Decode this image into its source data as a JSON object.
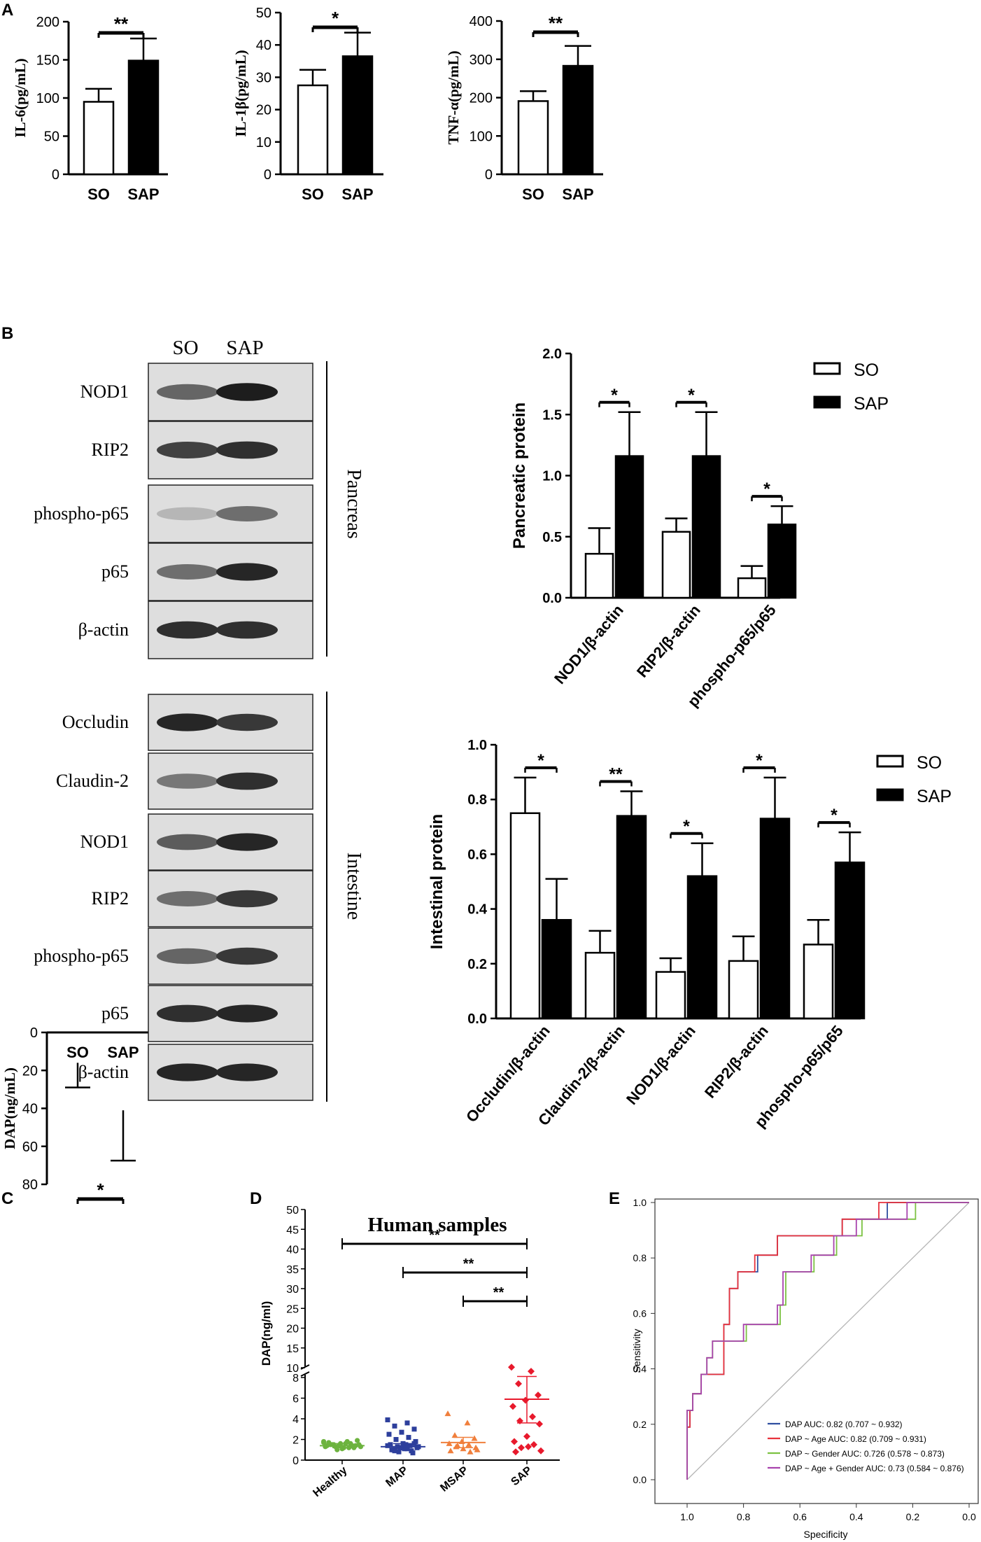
{
  "panels": [
    "A",
    "B",
    "C",
    "D",
    "E"
  ],
  "chart_data": [
    {
      "id": "A1",
      "type": "bar",
      "categories": [
        "SO",
        "SAP"
      ],
      "values": [
        95,
        149
      ],
      "errors": [
        17,
        29
      ],
      "ylabel": "IL-6(pg/mL)",
      "ylim": [
        0,
        200
      ],
      "yticks": [
        0,
        50,
        100,
        150,
        200
      ],
      "significance": [
        {
          "from": 0,
          "to": 1,
          "label": "**"
        }
      ]
    },
    {
      "id": "A2",
      "type": "bar",
      "categories": [
        "SO",
        "SAP"
      ],
      "values": [
        27.5,
        36.5
      ],
      "errors": [
        4.8,
        7.3
      ],
      "ylabel": "IL-1β(pg/mL)",
      "ylim": [
        0,
        50
      ],
      "yticks": [
        0,
        10,
        20,
        30,
        40,
        50
      ],
      "significance": [
        {
          "from": 0,
          "to": 1,
          "label": "*"
        }
      ]
    },
    {
      "id": "A3",
      "type": "bar",
      "categories": [
        "SO",
        "SAP"
      ],
      "values": [
        191,
        283
      ],
      "errors": [
        26,
        52
      ],
      "ylabel": "TNF-α(pg/mL)",
      "ylim": [
        0,
        400
      ],
      "yticks": [
        0,
        100,
        200,
        300,
        400
      ],
      "significance": [
        {
          "from": 0,
          "to": 1,
          "label": "**"
        }
      ]
    },
    {
      "id": "B_pancreas",
      "type": "bar",
      "categories": [
        "NOD1/β-actin",
        "RIP2/β-actin",
        "phospho-p65/p65"
      ],
      "series": [
        {
          "name": "SO",
          "values": [
            0.36,
            0.54,
            0.16
          ],
          "errors": [
            0.21,
            0.11,
            0.1
          ]
        },
        {
          "name": "SAP",
          "values": [
            1.16,
            1.16,
            0.6
          ],
          "errors": [
            0.36,
            0.36,
            0.15
          ]
        }
      ],
      "ylabel": "Pancreatic protein",
      "ylim": [
        0,
        2.0
      ],
      "yticks": [
        "0.0",
        "0.5",
        "1.0",
        "1.5",
        "2.0"
      ],
      "significance_labels": [
        "*",
        "*",
        "*"
      ],
      "legend": "top-right"
    },
    {
      "id": "B_intestine",
      "type": "bar",
      "categories": [
        "Occludin/β-actin",
        "Claudin-2/β-actin",
        "NOD1/β-actin",
        "RIP2/β-actin",
        "phospho-p65/p65"
      ],
      "series": [
        {
          "name": "SO",
          "values": [
            0.75,
            0.24,
            0.17,
            0.21,
            0.27
          ],
          "errors": [
            0.13,
            0.08,
            0.05,
            0.09,
            0.09
          ]
        },
        {
          "name": "SAP",
          "values": [
            0.36,
            0.74,
            0.52,
            0.73,
            0.57
          ],
          "errors": [
            0.15,
            0.09,
            0.12,
            0.15,
            0.11
          ]
        }
      ],
      "ylabel": "Intestinal protein",
      "ylim": [
        0,
        1.0
      ],
      "yticks": [
        "0.0",
        "0.2",
        "0.4",
        "0.6",
        "0.8",
        "1.0"
      ],
      "significance_labels": [
        "*",
        "**",
        "*",
        "*",
        "*"
      ],
      "legend": "top-right"
    },
    {
      "id": "C",
      "type": "bar",
      "categories": [
        "SO",
        "SAP"
      ],
      "values": [
        16,
        41
      ],
      "errors": [
        13,
        26.5
      ],
      "ylabel": "DAP(ng/mL)",
      "ylim": [
        0,
        80
      ],
      "yticks": [
        0,
        20,
        40,
        60,
        80
      ],
      "significance": [
        {
          "from": 0,
          "to": 1,
          "label": "*"
        }
      ]
    },
    {
      "id": "D",
      "type": "scatter",
      "title": "Human samples",
      "categories": [
        "Healthy",
        "MAP",
        "MSAP",
        "SAP"
      ],
      "colors": [
        "#6db33f",
        "#2d3f9c",
        "#f07f3c",
        "#e8192c"
      ],
      "ylabel": "DAP(ng/ml)",
      "yticks_lower": [
        "0",
        "2",
        "4",
        "6",
        "8"
      ],
      "yticks_upper": [
        "10",
        "15",
        "20",
        "25",
        "30",
        "35",
        "40",
        "45",
        "50"
      ],
      "points": [
        [
          1.7,
          1.8,
          1.5,
          1.4,
          1.6,
          1.3,
          1.2,
          1.5,
          1.9,
          1.1,
          1.4,
          1.6,
          1.3,
          1.5,
          1.2,
          1.7,
          1.4,
          1.0,
          1.3,
          1.6,
          1.5,
          1.2,
          1.4,
          1.8
        ],
        [
          3.9,
          3.6,
          3.3,
          3.0,
          2.7,
          2.5,
          2.2,
          2.0,
          1.8,
          1.6,
          1.5,
          1.4,
          1.3,
          1.2,
          1.1,
          1.0,
          0.9,
          0.8,
          1.3,
          1.5,
          1.0,
          0.7,
          1.2,
          1.4,
          1.1,
          0.9,
          1.6,
          1.2
        ],
        [
          4.5,
          3.6,
          2.4,
          2.1,
          1.8,
          1.6,
          1.5,
          1.3,
          1.2,
          1.1,
          0.9,
          0.8,
          1.4,
          1.0
        ],
        [
          9.0,
          8.6,
          7.4,
          6.3,
          5.8,
          5.2,
          4.2,
          3.8,
          3.5,
          2.3,
          1.8,
          1.5,
          1.2,
          0.9,
          1.3,
          0.8
        ]
      ],
      "means": [
        1.4,
        1.3,
        1.7,
        5.9
      ],
      "sd_upper": [
        1.6,
        1.6,
        2.2,
        8.1
      ],
      "sd_lower": [
        1.2,
        1.0,
        1.2,
        3.6
      ],
      "significance": [
        {
          "from": 0,
          "to": 3,
          "label": "**"
        },
        {
          "from": 1,
          "to": 3,
          "label": "**"
        },
        {
          "from": 2,
          "to": 3,
          "label": "**"
        }
      ]
    },
    {
      "id": "E",
      "type": "line",
      "title": "",
      "xlabel": "Specificity",
      "ylabel": "Sensitivity",
      "xticks": [
        "1.0",
        "0.8",
        "0.6",
        "0.4",
        "0.2",
        "0.0"
      ],
      "yticks": [
        "0.0",
        "0.2",
        "0.4",
        "0.6",
        "0.8",
        "1.0"
      ],
      "series": [
        {
          "name": "DAP AUC: 0.82 (0.707 ~ 0.932)",
          "color": "#2f4fa0",
          "points": [
            [
              1.0,
              0
            ],
            [
              1.0,
              0.19
            ],
            [
              0.99,
              0.19
            ],
            [
              0.99,
              0.25
            ],
            [
              0.98,
              0.25
            ],
            [
              0.98,
              0.31
            ],
            [
              0.95,
              0.31
            ],
            [
              0.95,
              0.38
            ],
            [
              0.87,
              0.38
            ],
            [
              0.87,
              0.56
            ],
            [
              0.85,
              0.56
            ],
            [
              0.85,
              0.69
            ],
            [
              0.82,
              0.69
            ],
            [
              0.82,
              0.75
            ],
            [
              0.75,
              0.75
            ],
            [
              0.75,
              0.81
            ],
            [
              0.68,
              0.81
            ],
            [
              0.68,
              0.88
            ],
            [
              0.45,
              0.88
            ],
            [
              0.45,
              0.94
            ],
            [
              0.29,
              0.94
            ],
            [
              0.29,
              1.0
            ],
            [
              0.0,
              1.0
            ]
          ]
        },
        {
          "name": "DAP ~ Age AUC: 0.82 (0.709 ~ 0.931)",
          "color": "#e8323c",
          "points": [
            [
              1.0,
              0
            ],
            [
              1.0,
              0.19
            ],
            [
              0.99,
              0.19
            ],
            [
              0.99,
              0.25
            ],
            [
              0.98,
              0.25
            ],
            [
              0.98,
              0.31
            ],
            [
              0.95,
              0.31
            ],
            [
              0.95,
              0.38
            ],
            [
              0.87,
              0.38
            ],
            [
              0.87,
              0.56
            ],
            [
              0.85,
              0.56
            ],
            [
              0.85,
              0.69
            ],
            [
              0.82,
              0.69
            ],
            [
              0.82,
              0.75
            ],
            [
              0.76,
              0.75
            ],
            [
              0.76,
              0.81
            ],
            [
              0.68,
              0.81
            ],
            [
              0.68,
              0.88
            ],
            [
              0.45,
              0.88
            ],
            [
              0.45,
              0.94
            ],
            [
              0.32,
              0.94
            ],
            [
              0.32,
              1.0
            ],
            [
              0.0,
              1.0
            ]
          ]
        },
        {
          "name": "DAP ~ Gender AUC: 0.726 (0.578 ~ 0.873)",
          "color": "#7cc242",
          "points": [
            [
              1.0,
              0
            ],
            [
              1.0,
              0.25
            ],
            [
              0.98,
              0.25
            ],
            [
              0.98,
              0.31
            ],
            [
              0.95,
              0.31
            ],
            [
              0.95,
              0.38
            ],
            [
              0.93,
              0.38
            ],
            [
              0.93,
              0.44
            ],
            [
              0.91,
              0.44
            ],
            [
              0.91,
              0.5
            ],
            [
              0.79,
              0.5
            ],
            [
              0.79,
              0.56
            ],
            [
              0.67,
              0.56
            ],
            [
              0.67,
              0.63
            ],
            [
              0.65,
              0.63
            ],
            [
              0.65,
              0.75
            ],
            [
              0.55,
              0.75
            ],
            [
              0.55,
              0.81
            ],
            [
              0.47,
              0.81
            ],
            [
              0.47,
              0.88
            ],
            [
              0.38,
              0.88
            ],
            [
              0.38,
              0.94
            ],
            [
              0.19,
              0.94
            ],
            [
              0.19,
              1.0
            ],
            [
              0.0,
              1.0
            ]
          ]
        },
        {
          "name": "DAP ~ Age + Gender AUC: 0.73 (0.584 ~ 0.876)",
          "color": "#a843ad",
          "points": [
            [
              1.0,
              0
            ],
            [
              1.0,
              0.25
            ],
            [
              0.98,
              0.25
            ],
            [
              0.98,
              0.31
            ],
            [
              0.95,
              0.31
            ],
            [
              0.95,
              0.38
            ],
            [
              0.93,
              0.38
            ],
            [
              0.93,
              0.44
            ],
            [
              0.91,
              0.44
            ],
            [
              0.91,
              0.5
            ],
            [
              0.8,
              0.5
            ],
            [
              0.8,
              0.56
            ],
            [
              0.68,
              0.56
            ],
            [
              0.68,
              0.63
            ],
            [
              0.66,
              0.63
            ],
            [
              0.66,
              0.75
            ],
            [
              0.56,
              0.75
            ],
            [
              0.56,
              0.81
            ],
            [
              0.48,
              0.81
            ],
            [
              0.48,
              0.88
            ],
            [
              0.4,
              0.88
            ],
            [
              0.4,
              0.94
            ],
            [
              0.22,
              0.94
            ],
            [
              0.22,
              1.0
            ],
            [
              0.0,
              1.0
            ]
          ]
        }
      ]
    }
  ],
  "blots": {
    "columns": [
      "SO",
      "SAP"
    ],
    "pancreas": {
      "tissue": "Pancreas",
      "rows": [
        {
          "label": "NOD1",
          "intensity": [
            0.55,
            0.95
          ]
        },
        {
          "label": "RIP2",
          "intensity": [
            0.75,
            0.85
          ]
        },
        {
          "label": "phospho-p65",
          "intensity": [
            0.1,
            0.5
          ]
        },
        {
          "label": "p65",
          "intensity": [
            0.5,
            0.9
          ]
        },
        {
          "label": "β-actin",
          "intensity": [
            0.85,
            0.85
          ]
        }
      ]
    },
    "intestine": {
      "tissue": "Intestine",
      "rows": [
        {
          "label": "Occludin",
          "intensity": [
            0.9,
            0.8
          ]
        },
        {
          "label": "Claudin-2",
          "intensity": [
            0.45,
            0.85
          ]
        },
        {
          "label": "NOD1",
          "intensity": [
            0.6,
            0.9
          ]
        },
        {
          "label": "RIP2",
          "intensity": [
            0.5,
            0.8
          ]
        },
        {
          "label": "phospho-p65",
          "intensity": [
            0.55,
            0.8
          ]
        },
        {
          "label": "p65",
          "intensity": [
            0.85,
            0.9
          ]
        },
        {
          "label": "β-actin",
          "intensity": [
            0.9,
            0.9
          ]
        }
      ]
    }
  }
}
